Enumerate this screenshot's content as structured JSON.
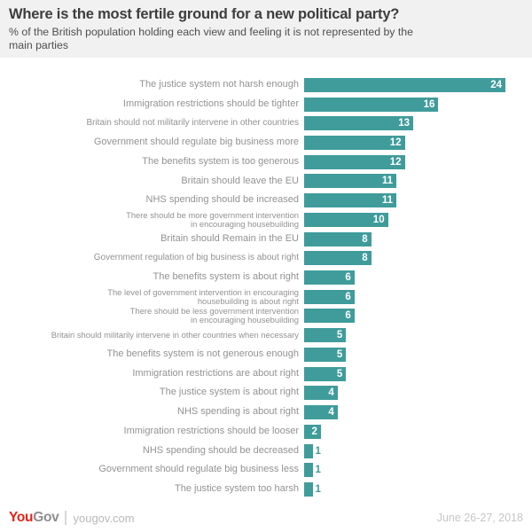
{
  "header": {
    "title": "Where is the most fertile ground for a new political party?",
    "subtitle": "% of the British population holding each view and feeling it is not represented by the\nmain parties"
  },
  "chart_data": {
    "type": "bar",
    "orientation": "horizontal",
    "title": "Where is the most fertile ground for a new political party?",
    "subtitle": "% of the British population holding each view and feeling it is not represented by the main parties",
    "categories": [
      "The justice system not harsh enough",
      "Immigration restrictions should be tighter",
      "Britain should not militarily intervene in other countries",
      "Government should regulate big business more",
      "The benefits system is too generous",
      "Britain should leave the EU",
      "NHS spending should be increased",
      "There should be more government intervention\nin encouraging housebuilding",
      "Britain should Remain in the EU",
      "Government regulation of big business is about right",
      "The benefits system is about right",
      "The level of government intervention in encouraging\nhousebuilding is about right",
      "There should be less government intervention\nin encouraging housebuilding",
      "Britain should militarily intervene in other countries when necessary",
      "The benefits system is not generous enough",
      "Immigration restrictions are about right",
      "The justice system is about right",
      "NHS spending is about right",
      "Immigration restrictions should be looser",
      "NHS spending should be decreased",
      "Government should regulate big business less",
      "The justice system too harsh"
    ],
    "values": [
      24,
      16,
      13,
      12,
      12,
      11,
      11,
      10,
      8,
      8,
      6,
      6,
      6,
      5,
      5,
      5,
      4,
      4,
      2,
      1,
      1,
      1
    ],
    "xlim": [
      0,
      27
    ],
    "grid": false,
    "legend": false,
    "bar_color": "#3f9c9b",
    "value_label_inside_color": "#ffffff",
    "value_label_outside_color": "#3f9c9b",
    "value_outside_threshold": 2
  },
  "footer": {
    "logo_you": "You",
    "logo_gov": "Gov",
    "site": "yougov.com",
    "date": "June 26-27, 2018",
    "brand_red": "#e2231a"
  }
}
